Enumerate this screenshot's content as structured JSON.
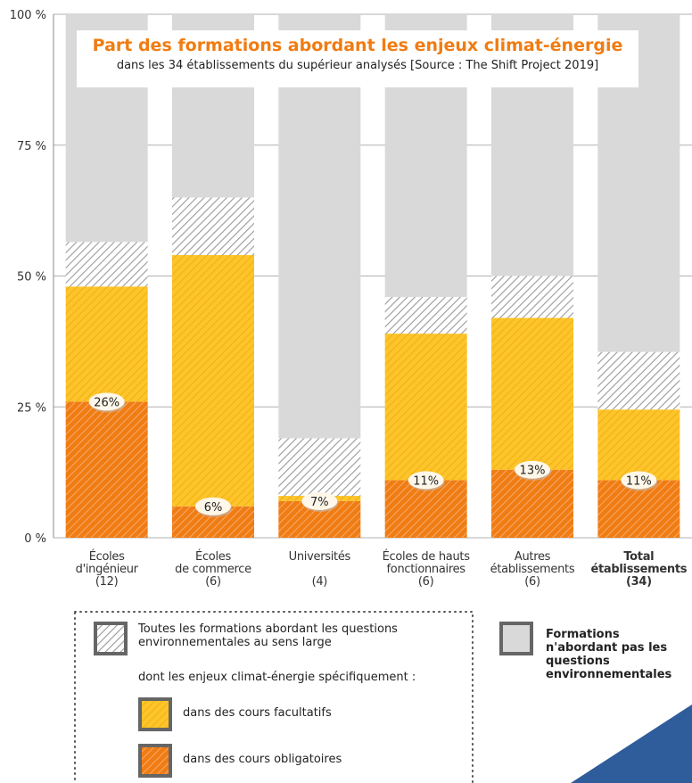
{
  "chart_data": {
    "type": "stacked_bar",
    "title": "Part des formations abordant les enjeux climat-énergie",
    "subtitle": "dans les 34 établissements du supérieur analysés [Source : The Shift Project 2019]",
    "categories": [
      "Écoles\nd'ingénieur\n(12)",
      "Écoles\nde commerce\n(6)",
      "Universités\n\n(4)",
      "Écoles de hauts\nfonctionnaires\n(6)",
      "Autres\nétablissements\n(6)",
      "Total\nétablissements\n(34)"
    ],
    "series": [
      {
        "name": "dans des cours obligatoires",
        "color": "#f07c12",
        "values": [
          26,
          6,
          7,
          11,
          13,
          11
        ],
        "value_labels": [
          "26%",
          "6%",
          "7%",
          "11%",
          "13%",
          "11%"
        ]
      },
      {
        "name": "dans des cours facultatifs",
        "color": "#fdc52a",
        "values": [
          22,
          48,
          1,
          28,
          29,
          13.5
        ]
      },
      {
        "name": "Toutes les formations abordant les questions environnementales au sens large",
        "color": "#9a9a9a",
        "values": [
          8.5,
          11,
          11,
          7,
          8,
          11
        ]
      },
      {
        "name": "Formations n'abordant pas les questions environnementales",
        "color": "#d9d9d9",
        "values": [
          43.5,
          35,
          81,
          54,
          50,
          64.5
        ]
      }
    ],
    "legend_note": "dont les enjeux climat-énergie spécifiquement :",
    "ylim": [
      0,
      100
    ],
    "yticks": [
      {
        "value": 0,
        "label": "0 %"
      },
      {
        "value": 25,
        "label": "25 %"
      },
      {
        "value": 50,
        "label": "50 %"
      },
      {
        "value": 75,
        "label": "75 %"
      },
      {
        "value": 100,
        "label": "100 %"
      }
    ],
    "grid": true
  }
}
